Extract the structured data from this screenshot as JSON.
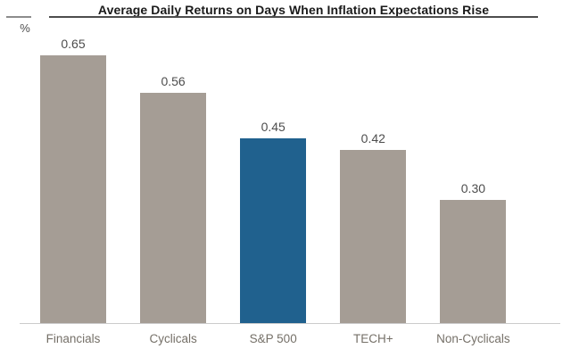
{
  "header": {
    "title": "Average Daily Returns on Days When Inflation Expectations Rise",
    "unit_label": "%"
  },
  "colors": {
    "bar_default": "#a59d95",
    "bar_highlight": "#20618e",
    "title_text": "#1a1a1a",
    "title_rule": "#4d4d4d",
    "value_label": "#4d4d4d",
    "category_label": "#757068",
    "baseline": "#cccccc",
    "background": "#ffffff"
  },
  "chart_data": {
    "type": "bar",
    "title": "Average Daily Returns on Days When Inflation Expectations Rise",
    "categories": [
      "Financials",
      "Cyclicals",
      "S&P 500",
      "TECH+",
      "Non-Cyclicals"
    ],
    "values": [
      0.65,
      0.56,
      0.45,
      0.42,
      0.3
    ],
    "value_labels": [
      "0.65",
      "0.56",
      "0.45",
      "0.42",
      "0.30"
    ],
    "highlight_category": "S&P 500",
    "highlight_index": 2,
    "xlabel": "",
    "ylabel": "%",
    "ylim": [
      0,
      0.7
    ],
    "grid": false,
    "legend": null,
    "data_labels_shown": true
  }
}
